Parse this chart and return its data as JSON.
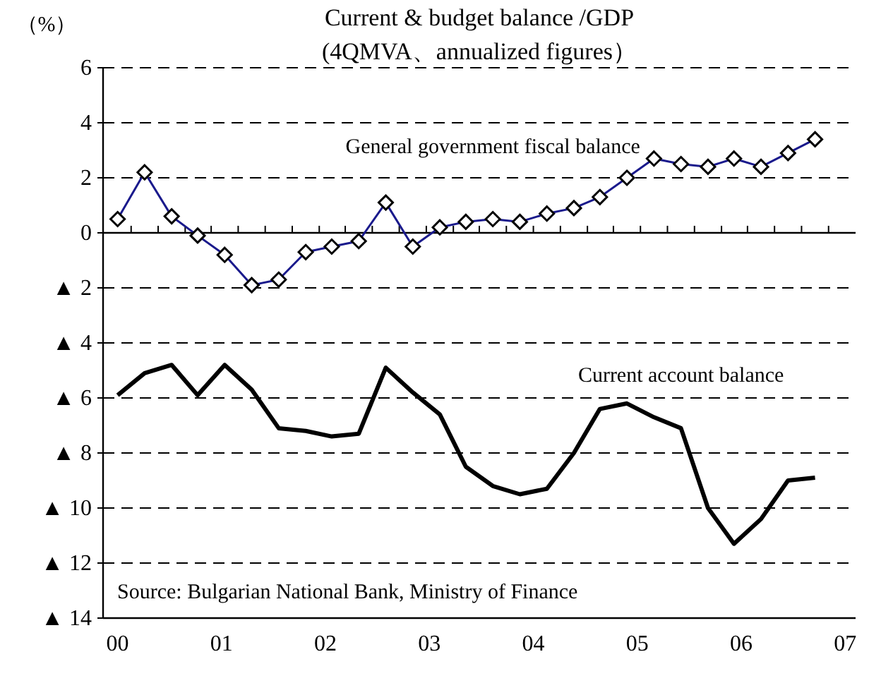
{
  "chart_data": {
    "type": "line",
    "title": "Current & budget balance /GDP",
    "subtitle": "(4QMVA、annualized figures）",
    "ylabel": "（%）",
    "x": [
      0,
      0.26,
      0.52,
      0.77,
      1.03,
      1.29,
      1.55,
      1.81,
      2.06,
      2.32,
      2.58,
      2.84,
      3.1,
      3.35,
      3.61,
      3.87,
      4.13,
      4.39,
      4.64,
      4.9,
      5.16,
      5.42,
      5.68,
      5.93,
      6.19,
      6.45,
      6.71
    ],
    "series": [
      {
        "name": "General government fiscal balance",
        "color": "#1a1a8c",
        "marker": "diamond",
        "values": [
          0.5,
          2.2,
          0.6,
          -0.1,
          -0.8,
          -1.9,
          -1.7,
          -0.7,
          -0.5,
          -0.3,
          1.1,
          -0.5,
          0.2,
          0.4,
          0.5,
          0.4,
          0.7,
          0.9,
          1.3,
          2.0,
          2.7,
          2.5,
          2.4,
          2.7,
          2.4,
          2.9,
          3.4
        ]
      },
      {
        "name": "Current account balance",
        "color": "#000000",
        "marker": "none",
        "values": [
          -5.9,
          -5.1,
          -4.8,
          -5.9,
          -4.8,
          -5.7,
          -7.1,
          -7.2,
          -7.4,
          -7.3,
          -4.9,
          -5.8,
          -6.6,
          -8.5,
          -9.2,
          -9.5,
          -9.3,
          -8.0,
          -6.4,
          -6.2,
          -6.7,
          -7.1,
          -10.0,
          -11.3,
          -10.4,
          -9.0,
          -8.9
        ]
      }
    ],
    "xlim": [
      -0.14,
      7.1
    ],
    "xticks": [
      {
        "value": 0,
        "label": "00"
      },
      {
        "value": 1,
        "label": "01"
      },
      {
        "value": 2,
        "label": "02"
      },
      {
        "value": 3,
        "label": "03"
      },
      {
        "value": 4,
        "label": "04"
      },
      {
        "value": 5,
        "label": "05"
      },
      {
        "value": 6,
        "label": "06"
      },
      {
        "value": 7,
        "label": "07"
      },
      {
        "value": 0.13,
        "label": null
      },
      {
        "value": 0.39,
        "label": null
      },
      {
        "value": 0.65,
        "label": null
      },
      {
        "value": 0.9,
        "label": null
      },
      {
        "value": 1.16,
        "label": null
      },
      {
        "value": 1.42,
        "label": null
      },
      {
        "value": 1.68,
        "label": null
      },
      {
        "value": 1.94,
        "label": null
      },
      {
        "value": 2.19,
        "label": null
      },
      {
        "value": 2.45,
        "label": null
      },
      {
        "value": 2.71,
        "label": null
      },
      {
        "value": 2.97,
        "label": null
      },
      {
        "value": 3.23,
        "label": null
      },
      {
        "value": 3.48,
        "label": null
      },
      {
        "value": 3.74,
        "label": null
      },
      {
        "value": 4.0,
        "label": null
      },
      {
        "value": 4.26,
        "label": null
      },
      {
        "value": 4.52,
        "label": null
      },
      {
        "value": 4.77,
        "label": null
      },
      {
        "value": 5.03,
        "label": null
      },
      {
        "value": 5.29,
        "label": null
      },
      {
        "value": 5.55,
        "label": null
      },
      {
        "value": 5.81,
        "label": null
      },
      {
        "value": 6.06,
        "label": null
      },
      {
        "value": 6.32,
        "label": null
      },
      {
        "value": 6.58,
        "label": null
      },
      {
        "value": 6.84,
        "label": null
      }
    ],
    "ylim": [
      -14,
      6
    ],
    "yticks": [
      6,
      4,
      2,
      0,
      {
        "value": -2,
        "label": "▲ 2"
      },
      {
        "value": -4,
        "label": "▲ 4"
      },
      {
        "value": -6,
        "label": "▲ 6"
      },
      {
        "value": -8,
        "label": "▲ 8"
      },
      {
        "value": -10,
        "label": "▲ 10"
      },
      {
        "value": -12,
        "label": "▲ 12"
      },
      {
        "value": -14,
        "label": "▲ 14"
      }
    ],
    "grid": "y",
    "line_style": "solid",
    "annotations": [
      "Source: Bulgarian National Bank, Ministry of Finance"
    ]
  }
}
